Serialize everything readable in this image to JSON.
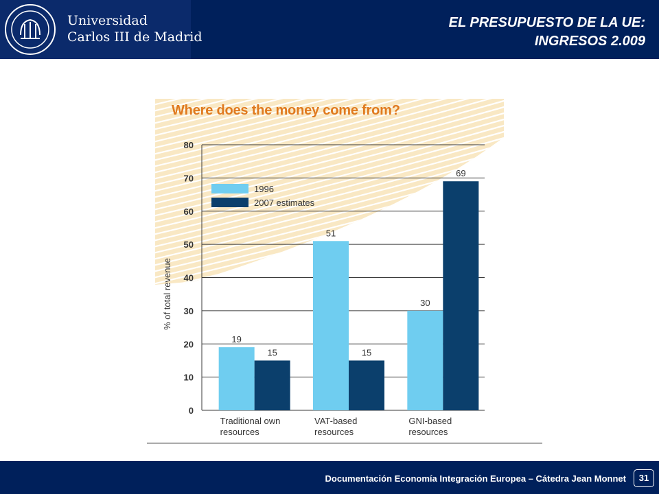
{
  "header": {
    "university_line1": "Universidad",
    "university_line2": "Carlos III de Madrid",
    "title_line1": "EL PRESUPUESTO DE LA UE:",
    "title_line2": "INGRESOS 2.009",
    "seal_label": "UNIVERSIDAD CARLOS III DE MADRID"
  },
  "chart_data": {
    "type": "bar",
    "title": "Where does the money come from?",
    "ylabel": "% of total revenue",
    "xlabel": "",
    "ylim": [
      0,
      80
    ],
    "yticks": [
      0,
      10,
      20,
      30,
      40,
      50,
      60,
      70,
      80
    ],
    "grid": true,
    "legend_placement": "top-left",
    "categories": [
      [
        "Traditional own",
        "resources"
      ],
      [
        "VAT-based",
        "resources"
      ],
      [
        "GNI-based",
        "resources"
      ]
    ],
    "series": [
      {
        "name": "1996",
        "values": [
          19,
          51,
          30
        ],
        "color": "#6fcdf0"
      },
      {
        "name": "2007 estimates",
        "values": [
          15,
          15,
          69
        ],
        "color": "#0b3f6c"
      }
    ],
    "colors": {
      "title": "#e07a1f",
      "background_band": "#f9e8c4",
      "stripe": "#ffffff",
      "grid": "#3a3a3a",
      "text": "#333333"
    }
  },
  "footer": {
    "text": "Documentación Economía Integración Europea – Cátedra Jean Monnet",
    "page_number": "31"
  }
}
